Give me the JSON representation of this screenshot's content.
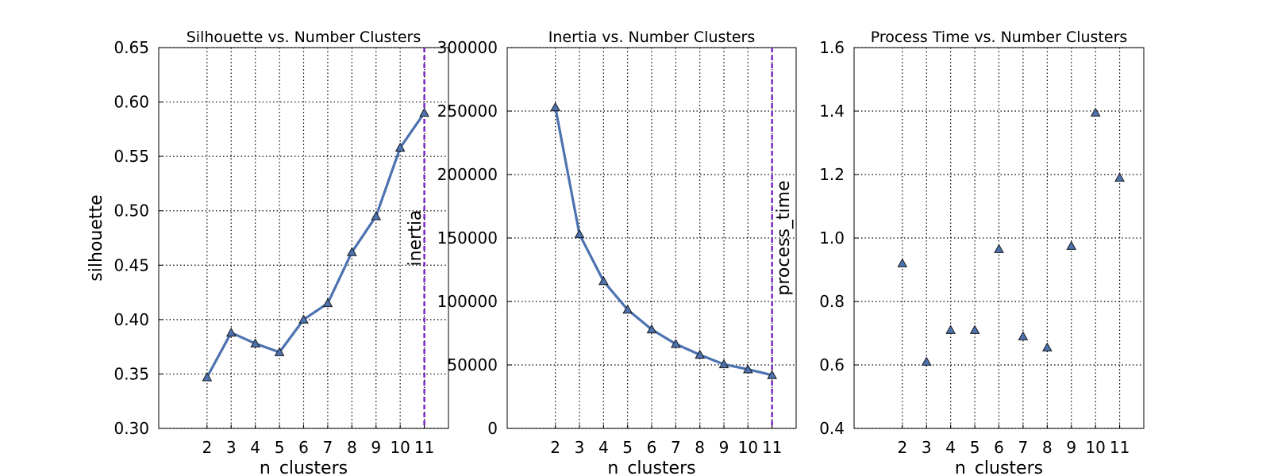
{
  "chart_data": [
    {
      "type": "line",
      "title": "Silhouette vs. Number Clusters",
      "xlabel": "n_clusters",
      "ylabel": "silhouette",
      "x": [
        2,
        3,
        4,
        5,
        6,
        7,
        8,
        9,
        10,
        11
      ],
      "values": [
        0.347,
        0.388,
        0.378,
        0.37,
        0.4,
        0.415,
        0.462,
        0.495,
        0.558,
        0.59
      ],
      "ylim": [
        0.3,
        0.65
      ],
      "yticks": [
        "0.30",
        "0.35",
        "0.40",
        "0.45",
        "0.50",
        "0.55",
        "0.60",
        "0.65"
      ],
      "xticks": [
        "2",
        "3",
        "4",
        "5",
        "6",
        "7",
        "8",
        "9",
        "10",
        "11"
      ],
      "marker": "triangle",
      "vline_x": 11,
      "grid": true,
      "series_color": "#4c72b0",
      "vline_color": "#7a1fc2"
    },
    {
      "type": "line",
      "title": "Inertia vs. Number Clusters",
      "xlabel": "n_clusters",
      "ylabel": "inertia",
      "x": [
        2,
        3,
        4,
        5,
        6,
        7,
        8,
        9,
        10,
        11
      ],
      "values": [
        253000,
        153000,
        116000,
        93500,
        78000,
        66500,
        58000,
        50500,
        46500,
        42000
      ],
      "ylim": [
        0,
        300000
      ],
      "yticks": [
        "0",
        "50000",
        "100000",
        "150000",
        "200000",
        "250000",
        "300000"
      ],
      "xticks": [
        "2",
        "3",
        "4",
        "5",
        "6",
        "7",
        "8",
        "9",
        "10",
        "11"
      ],
      "marker": "triangle",
      "vline_x": 11,
      "grid": true,
      "series_color": "#4c72b0",
      "vline_color": "#7a1fc2"
    },
    {
      "type": "scatter",
      "title": "Process Time vs. Number Clusters",
      "xlabel": "n_clusters",
      "ylabel": "process_time",
      "x": [
        2,
        3,
        4,
        5,
        6,
        7,
        8,
        9,
        10,
        11
      ],
      "values": [
        0.92,
        0.61,
        0.71,
        0.71,
        0.965,
        0.69,
        0.655,
        0.975,
        1.395,
        1.19
      ],
      "ylim": [
        0.4,
        1.6
      ],
      "yticks": [
        "0.4",
        "0.6",
        "0.8",
        "1.0",
        "1.2",
        "1.4",
        "1.6"
      ],
      "xticks": [
        "2",
        "3",
        "4",
        "5",
        "6",
        "7",
        "8",
        "9",
        "10",
        "11"
      ],
      "marker": "triangle",
      "grid": true,
      "series_color": "#4c72b0"
    }
  ]
}
